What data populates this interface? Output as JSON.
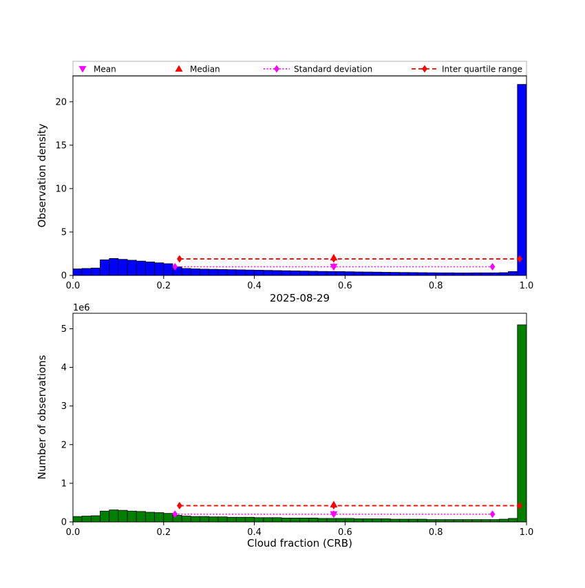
{
  "title": "2025-08-29",
  "legend": {
    "border_color": "#b0b0b0",
    "items": [
      {
        "label": "Mean",
        "marker": "triangle-down",
        "color": "#ff00ff",
        "line": "none"
      },
      {
        "label": "Median",
        "marker": "triangle-up",
        "color": "#ff0000",
        "line": "none"
      },
      {
        "label": "Standard deviation",
        "marker": "diamond",
        "color": "#ff00ff",
        "line": "dotted"
      },
      {
        "label": "Inter quartile range",
        "marker": "diamond",
        "color": "#ff0000",
        "line": "dashed"
      }
    ]
  },
  "chart_data": [
    {
      "type": "bar",
      "panel": "top",
      "ylabel": "Observation density",
      "bar_color": "#0000ff",
      "bin_start": 0.0,
      "bin_width": 0.02,
      "xlim": [
        0.0,
        1.0
      ],
      "ylim": [
        0,
        23
      ],
      "grid": false,
      "values": [
        0.75,
        0.8,
        0.85,
        1.8,
        1.95,
        1.85,
        1.75,
        1.65,
        1.55,
        1.45,
        1.35,
        1.0,
        0.8,
        0.75,
        0.72,
        0.7,
        0.68,
        0.66,
        0.64,
        0.62,
        0.6,
        0.58,
        0.56,
        0.54,
        0.52,
        0.5,
        0.48,
        0.46,
        0.45,
        0.44,
        0.42,
        0.4,
        0.39,
        0.38,
        0.36,
        0.35,
        0.34,
        0.33,
        0.32,
        0.31,
        0.3,
        0.3,
        0.29,
        0.29,
        0.3,
        0.3,
        0.3,
        0.32,
        0.45,
        22.0
      ],
      "xticks": [
        {
          "v": 0.0,
          "label": "0.0"
        },
        {
          "v": 0.2,
          "label": "0.2"
        },
        {
          "v": 0.4,
          "label": "0.4"
        },
        {
          "v": 0.6,
          "label": "0.6"
        },
        {
          "v": 0.8,
          "label": "0.8"
        },
        {
          "v": 1.0,
          "label": "1.0"
        }
      ],
      "yticks": [
        {
          "v": 0,
          "label": "0"
        },
        {
          "v": 5,
          "label": "5"
        },
        {
          "v": 10,
          "label": "10"
        },
        {
          "v": 15,
          "label": "15"
        },
        {
          "v": 20,
          "label": "20"
        }
      ],
      "markers": {
        "mean": {
          "name": "mean",
          "x": 0.575,
          "y": 1.0,
          "color": "#ff00ff"
        },
        "median": {
          "name": "median",
          "x": 0.575,
          "y": 2.05,
          "color": "#ff0000"
        },
        "std": {
          "name": "std",
          "points": [
            0.225,
            0.575,
            0.925
          ],
          "y": 1.0,
          "color": "#ff00ff",
          "style": "dotted"
        },
        "iqr": {
          "name": "iqr",
          "points": [
            0.235,
            0.575,
            0.985
          ],
          "y": 1.9,
          "color": "#ff0000",
          "style": "dashed"
        }
      }
    },
    {
      "type": "bar",
      "panel": "bottom",
      "ylabel": "Number of observations",
      "xlabel": "Cloud fraction (CRB)",
      "offset_text": "1e6",
      "bar_color": "#008000",
      "bin_start": 0.0,
      "bin_width": 0.02,
      "xlim": [
        0.0,
        1.0
      ],
      "ylim": [
        0,
        5.4
      ],
      "grid": false,
      "values": [
        0.14,
        0.15,
        0.16,
        0.28,
        0.31,
        0.3,
        0.28,
        0.27,
        0.25,
        0.24,
        0.22,
        0.17,
        0.15,
        0.14,
        0.14,
        0.13,
        0.13,
        0.12,
        0.12,
        0.12,
        0.11,
        0.11,
        0.11,
        0.1,
        0.1,
        0.1,
        0.1,
        0.09,
        0.09,
        0.09,
        0.09,
        0.08,
        0.08,
        0.08,
        0.08,
        0.07,
        0.07,
        0.07,
        0.07,
        0.06,
        0.06,
        0.06,
        0.06,
        0.06,
        0.06,
        0.06,
        0.06,
        0.07,
        0.09,
        5.1
      ],
      "xticks": [
        {
          "v": 0.0,
          "label": "0.0"
        },
        {
          "v": 0.2,
          "label": "0.2"
        },
        {
          "v": 0.4,
          "label": "0.4"
        },
        {
          "v": 0.6,
          "label": "0.6"
        },
        {
          "v": 0.8,
          "label": "0.8"
        },
        {
          "v": 1.0,
          "label": "1.0"
        }
      ],
      "yticks": [
        {
          "v": 0,
          "label": "0"
        },
        {
          "v": 1,
          "label": "1"
        },
        {
          "v": 2,
          "label": "2"
        },
        {
          "v": 3,
          "label": "3"
        },
        {
          "v": 4,
          "label": "4"
        },
        {
          "v": 5,
          "label": "5"
        }
      ],
      "markers": {
        "mean": {
          "name": "mean",
          "x": 0.575,
          "y": 0.2,
          "color": "#ff00ff"
        },
        "median": {
          "name": "median",
          "x": 0.575,
          "y": 0.45,
          "color": "#ff0000"
        },
        "std": {
          "name": "std",
          "points": [
            0.225,
            0.575,
            0.925
          ],
          "y": 0.2,
          "color": "#ff00ff",
          "style": "dotted"
        },
        "iqr": {
          "name": "iqr",
          "points": [
            0.235,
            0.575,
            0.985
          ],
          "y": 0.42,
          "color": "#ff0000",
          "style": "dashed"
        }
      }
    }
  ]
}
